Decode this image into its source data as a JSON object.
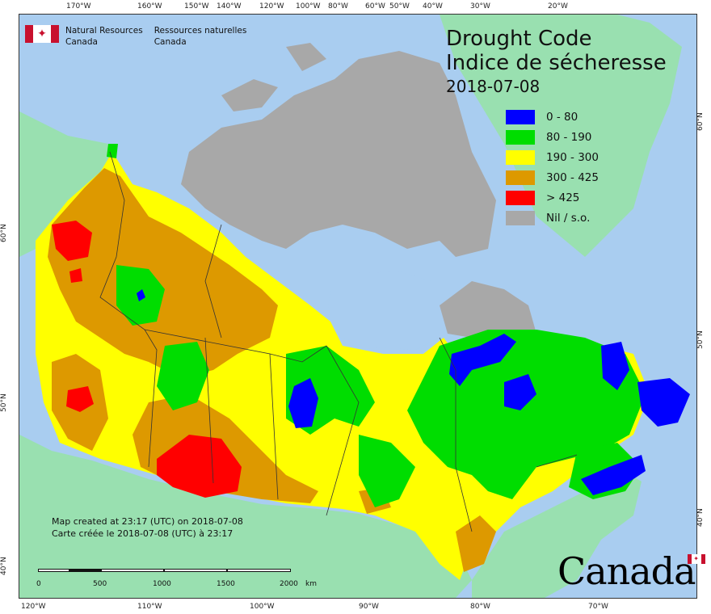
{
  "agency": {
    "name_en_line1": "Natural Resources",
    "name_en_line2": "Canada",
    "name_fr_line1": "Ressources naturelles",
    "name_fr_line2": "Canada"
  },
  "title": {
    "line1": "Drought Code",
    "line2": "Indice de sécheresse",
    "date": "2018-07-08"
  },
  "legend": [
    {
      "label": "0 - 80",
      "color": "#0000ff"
    },
    {
      "label": "80 - 190",
      "color": "#00dd00"
    },
    {
      "label": "190 - 300",
      "color": "#ffff00"
    },
    {
      "label": "300 - 425",
      "color": "#dd9900"
    },
    {
      "label": "> 425",
      "color": "#ff0000"
    },
    {
      "label": "Nil / s.o.",
      "color": "#a8a8a8"
    }
  ],
  "credit": {
    "line1": "Map created at 23:17 (UTC) on 2018-07-08",
    "line2": "Carte créée le 2018-07-08 (UTC) à 23:17"
  },
  "scale": {
    "labels": [
      "0",
      "500",
      "1000",
      "1500",
      "2000"
    ],
    "unit": "km"
  },
  "graticule": {
    "top": [
      "170°W",
      "160°W",
      "150°W",
      "140°W",
      "120°W",
      "100°W",
      "80°W",
      "60°W",
      "50°W",
      "40°W",
      "30°W",
      "20°W"
    ],
    "bottom": [
      "120°W",
      "110°W",
      "100°W",
      "90°W",
      "80°W",
      "70°W"
    ],
    "left": [
      "60°N",
      "50°N",
      "40°N"
    ],
    "right": [
      "60°N",
      "50°N",
      "40°N"
    ]
  },
  "wordmark": "Canada",
  "colors": {
    "ocean": "#a9cdf0",
    "land_outside": "#99e0b0",
    "nodata": "#a8a8a8",
    "class_0_80": "#0000ff",
    "class_80_190": "#00dd00",
    "class_190_300": "#ffff00",
    "class_300_425": "#dd9900",
    "class_425_plus": "#ff0000",
    "flag_red": "#c8102e"
  }
}
